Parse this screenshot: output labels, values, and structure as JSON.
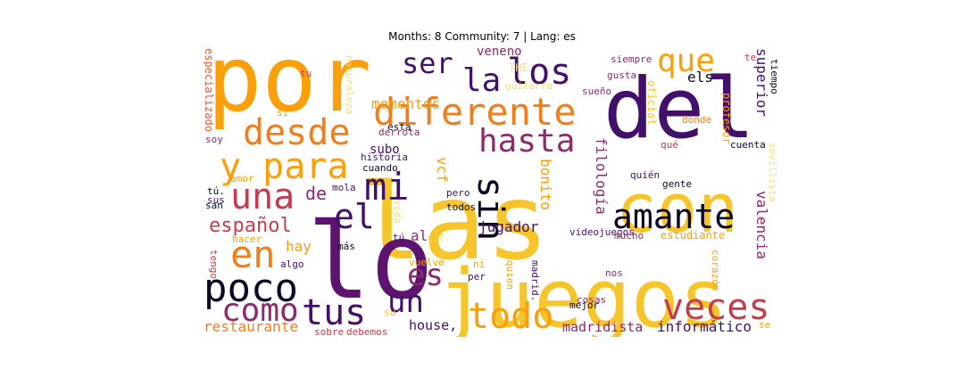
{
  "title": "Months: 8 Community: 7 | Lang: es",
  "palette": {
    "black": "#0b0724",
    "deep_purple": "#42106b",
    "purple": "#5c146e",
    "magenta": "#8c2a6a",
    "pink_red": "#c43c4e",
    "red_orange": "#df5a3a",
    "orange": "#f27d1a",
    "amber": "#fb9f0b",
    "yellow": "#f6c42b",
    "pale_yellow": "#f2e07a"
  },
  "words": [
    {
      "text": "por",
      "color": "amber"
    },
    {
      "text": "las",
      "color": "yellow"
    },
    {
      "text": "del",
      "color": "deep_purple"
    },
    {
      "text": "con",
      "color": "yellow"
    },
    {
      "text": "juegos",
      "color": "yellow"
    },
    {
      "text": "lo",
      "color": "purple"
    },
    {
      "text": "los",
      "color": "deep_purple"
    },
    {
      "text": "diferente",
      "color": "orange"
    },
    {
      "text": "que",
      "color": "amber"
    },
    {
      "text": "ser",
      "color": "deep_purple"
    },
    {
      "text": "la",
      "color": "deep_purple"
    },
    {
      "text": "desde",
      "color": "orange"
    },
    {
      "text": "y para",
      "color": "amber"
    },
    {
      "text": "una",
      "color": "pink_red"
    },
    {
      "text": "mi",
      "color": "deep_purple"
    },
    {
      "text": "el",
      "color": "deep_purple"
    },
    {
      "text": "sin",
      "color": "black"
    },
    {
      "text": "hasta",
      "color": "magenta"
    },
    {
      "text": "amante",
      "color": "black"
    },
    {
      "text": "en",
      "color": "orange"
    },
    {
      "text": "poco",
      "color": "black"
    },
    {
      "text": "como",
      "color": "magenta"
    },
    {
      "text": "tus",
      "color": "deep_purple"
    },
    {
      "text": "un",
      "color": "deep_purple"
    },
    {
      "text": "es",
      "color": "magenta"
    },
    {
      "text": "todo",
      "color": "amber"
    },
    {
      "text": "veces",
      "color": "pink_red"
    },
    {
      "text": "español",
      "color": "pink_red"
    },
    {
      "text": "de",
      "color": "magenta"
    },
    {
      "text": "hay",
      "color": "amber"
    },
    {
      "text": "al",
      "color": "magenta"
    },
    {
      "text": "momentos",
      "color": "amber"
    },
    {
      "text": "veneno",
      "color": "magenta"
    },
    {
      "text": "THE",
      "color": "pale_yellow"
    },
    {
      "text": "guitarra",
      "color": "pale_yellow"
    },
    {
      "text": "siempre",
      "color": "magenta"
    },
    {
      "text": "gusta",
      "color": "magenta"
    },
    {
      "text": "sueño",
      "color": "magenta"
    },
    {
      "text": "els",
      "color": "black"
    },
    {
      "text": "superior",
      "color": "deep_purple"
    },
    {
      "text": "profesor",
      "color": "amber"
    },
    {
      "text": "te",
      "color": "pink_red"
    },
    {
      "text": "tiempo",
      "color": "black"
    },
    {
      "text": "oficial",
      "color": "yellow"
    },
    {
      "text": "donde",
      "color": "orange"
    },
    {
      "text": "qué",
      "color": "pink_red"
    },
    {
      "text": "cuenta",
      "color": "black"
    },
    {
      "text": "quién",
      "color": "deep_purple"
    },
    {
      "text": "gente",
      "color": "black"
    },
    {
      "text": "sevillista",
      "color": "pale_yellow"
    },
    {
      "text": "filología",
      "color": "magenta"
    },
    {
      "text": "bonito",
      "color": "amber"
    },
    {
      "text": "jugador",
      "color": "deep_purple"
    },
    {
      "text": "valencia",
      "color": "magenta"
    },
    {
      "text": "estudiante",
      "color": "amber"
    },
    {
      "text": "mucho",
      "color": "magenta"
    },
    {
      "text": "videojuegos",
      "color": "deep_purple"
    },
    {
      "text": "corazón",
      "color": "amber"
    },
    {
      "text": "nos",
      "color": "magenta"
    },
    {
      "text": "cosas",
      "color": "magenta"
    },
    {
      "text": "mejor",
      "color": "black"
    },
    {
      "text": "madridista",
      "color": "magenta"
    },
    {
      "text": "informático",
      "color": "deep_purple"
    },
    {
      "text": "se",
      "color": "amber"
    },
    {
      "text": "house,",
      "color": "deep_purple"
    },
    {
      "text": "restaurante",
      "color": "orange"
    },
    {
      "text": "sobre",
      "color": "pink_red"
    },
    {
      "text": "debemos",
      "color": "pink_red"
    },
    {
      "text": "su",
      "color": "yellow"
    },
    {
      "text": "madrid.",
      "color": "deep_purple"
    },
    {
      "text": "quien",
      "color": "amber"
    },
    {
      "text": "ni",
      "color": "amber"
    },
    {
      "text": "per",
      "color": "deep_purple"
    },
    {
      "text": "vuelve",
      "color": "amber"
    },
    {
      "text": "c.f.",
      "color": "pale_yellow"
    },
    {
      "text": "tú",
      "color": "deep_purple"
    },
    {
      "text": "más",
      "color": "black"
    },
    {
      "text": "algo",
      "color": "deep_purple"
    },
    {
      "text": "hacer",
      "color": "amber"
    },
    {
      "text": "tengo",
      "color": "pink_red"
    },
    {
      "text": "vida",
      "color": "pale_yellow"
    },
    {
      "text": "todos",
      "color": "black"
    },
    {
      "text": "pero",
      "color": "deep_purple"
    },
    {
      "text": "vcf",
      "color": "amber"
    },
    {
      "text": "cuando",
      "color": "black"
    },
    {
      "text": "historia",
      "color": "deep_purple"
    },
    {
      "text": "mola",
      "color": "deep_purple"
    },
    {
      "text": "subo",
      "color": "deep_purple"
    },
    {
      "text": "derrota",
      "color": "magenta"
    },
    {
      "text": "esta",
      "color": "black"
    },
    {
      "text": "naturaleza",
      "color": "pale_yellow"
    },
    {
      "text": "tu",
      "color": "pink_red"
    },
    {
      "text": "si",
      "color": "amber"
    },
    {
      "text": "especializado",
      "color": "red_orange"
    },
    {
      "text": "soy",
      "color": "magenta"
    },
    {
      "text": "amor",
      "color": "amber"
    },
    {
      "text": "tú.",
      "color": "black"
    },
    {
      "text": "sus",
      "color": "deep_purple"
    },
    {
      "text": "san",
      "color": "black"
    }
  ]
}
